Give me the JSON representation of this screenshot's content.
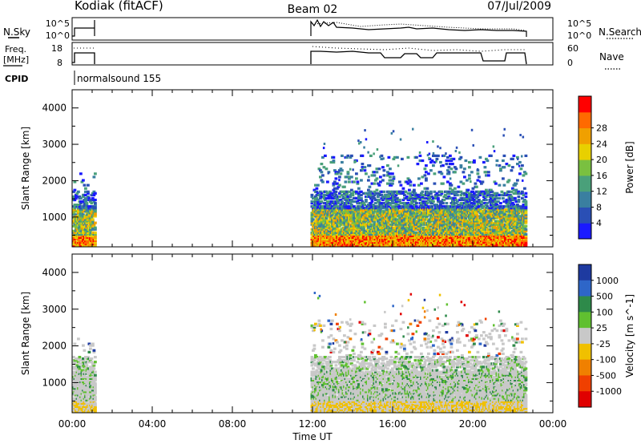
{
  "header": {
    "station": "Kodiak (fitACF)",
    "beam": "Beam 02",
    "date": "07/Jul/2009"
  },
  "noise_panel": {
    "left_label": "N.Sky",
    "left_ticks": [
      "10^5",
      "10^0"
    ],
    "right_label": "N.Search",
    "right_ticks": [
      "10^5",
      "10^0"
    ]
  },
  "freq_panel": {
    "left_label_line1": "Freq.",
    "left_label_line2": "[MHz]",
    "left_ticks": [
      "18",
      "8"
    ],
    "right_label": "Nave",
    "right_ticks": [
      "60",
      "0"
    ]
  },
  "cpid": {
    "label": "CPID",
    "program": "normalsound 155"
  },
  "chart_data": [
    {
      "type": "heatmap",
      "title": "",
      "xlabel": "",
      "ylabel": "Slant Range [km]",
      "x_range_hours": [
        0,
        24
      ],
      "x_ticks": [
        "00:00",
        "04:00",
        "08:00",
        "12:00",
        "16:00",
        "20:00",
        "00:00"
      ],
      "y_ticks": [
        "1000",
        "2000",
        "3000",
        "4000"
      ],
      "ylim": [
        180,
        4500
      ],
      "colorbar_label": "Power [dB]",
      "colorbar_ticks": [
        "4",
        "8",
        "12",
        "16",
        "20",
        "24",
        "28"
      ],
      "colorbar_colors": [
        "#1a1aff",
        "#2a4fb5",
        "#3a7fa0",
        "#4aa07a",
        "#7ac040",
        "#e8d000",
        "#f0a000",
        "#ff6a00",
        "#ff0000"
      ],
      "data_coverage_hours": [
        [
          0.0,
          1.1
        ],
        [
          11.9,
          22.6
        ]
      ]
    },
    {
      "type": "heatmap",
      "title": "",
      "xlabel": "Time UT",
      "ylabel": "Slant Range [km]",
      "x_range_hours": [
        0,
        24
      ],
      "x_ticks": [
        "00:00",
        "04:00",
        "08:00",
        "12:00",
        "16:00",
        "20:00",
        "00:00"
      ],
      "y_ticks": [
        "1000",
        "2000",
        "3000",
        "4000"
      ],
      "ylim": [
        180,
        4500
      ],
      "colorbar_label": "Velocity [m s^-1]",
      "colorbar_ticks": [
        "1000",
        "500",
        "100",
        "25",
        "-25",
        "-100",
        "-500",
        "-1000"
      ],
      "colorbar_colors": [
        "#1e3aa0",
        "#2e66c8",
        "#2e8a4a",
        "#60c030",
        "#c8c8c8",
        "#f0c000",
        "#f08000",
        "#f04000",
        "#e00000"
      ],
      "data_coverage_hours": [
        [
          0.0,
          1.1
        ],
        [
          11.9,
          22.6
        ]
      ]
    }
  ]
}
